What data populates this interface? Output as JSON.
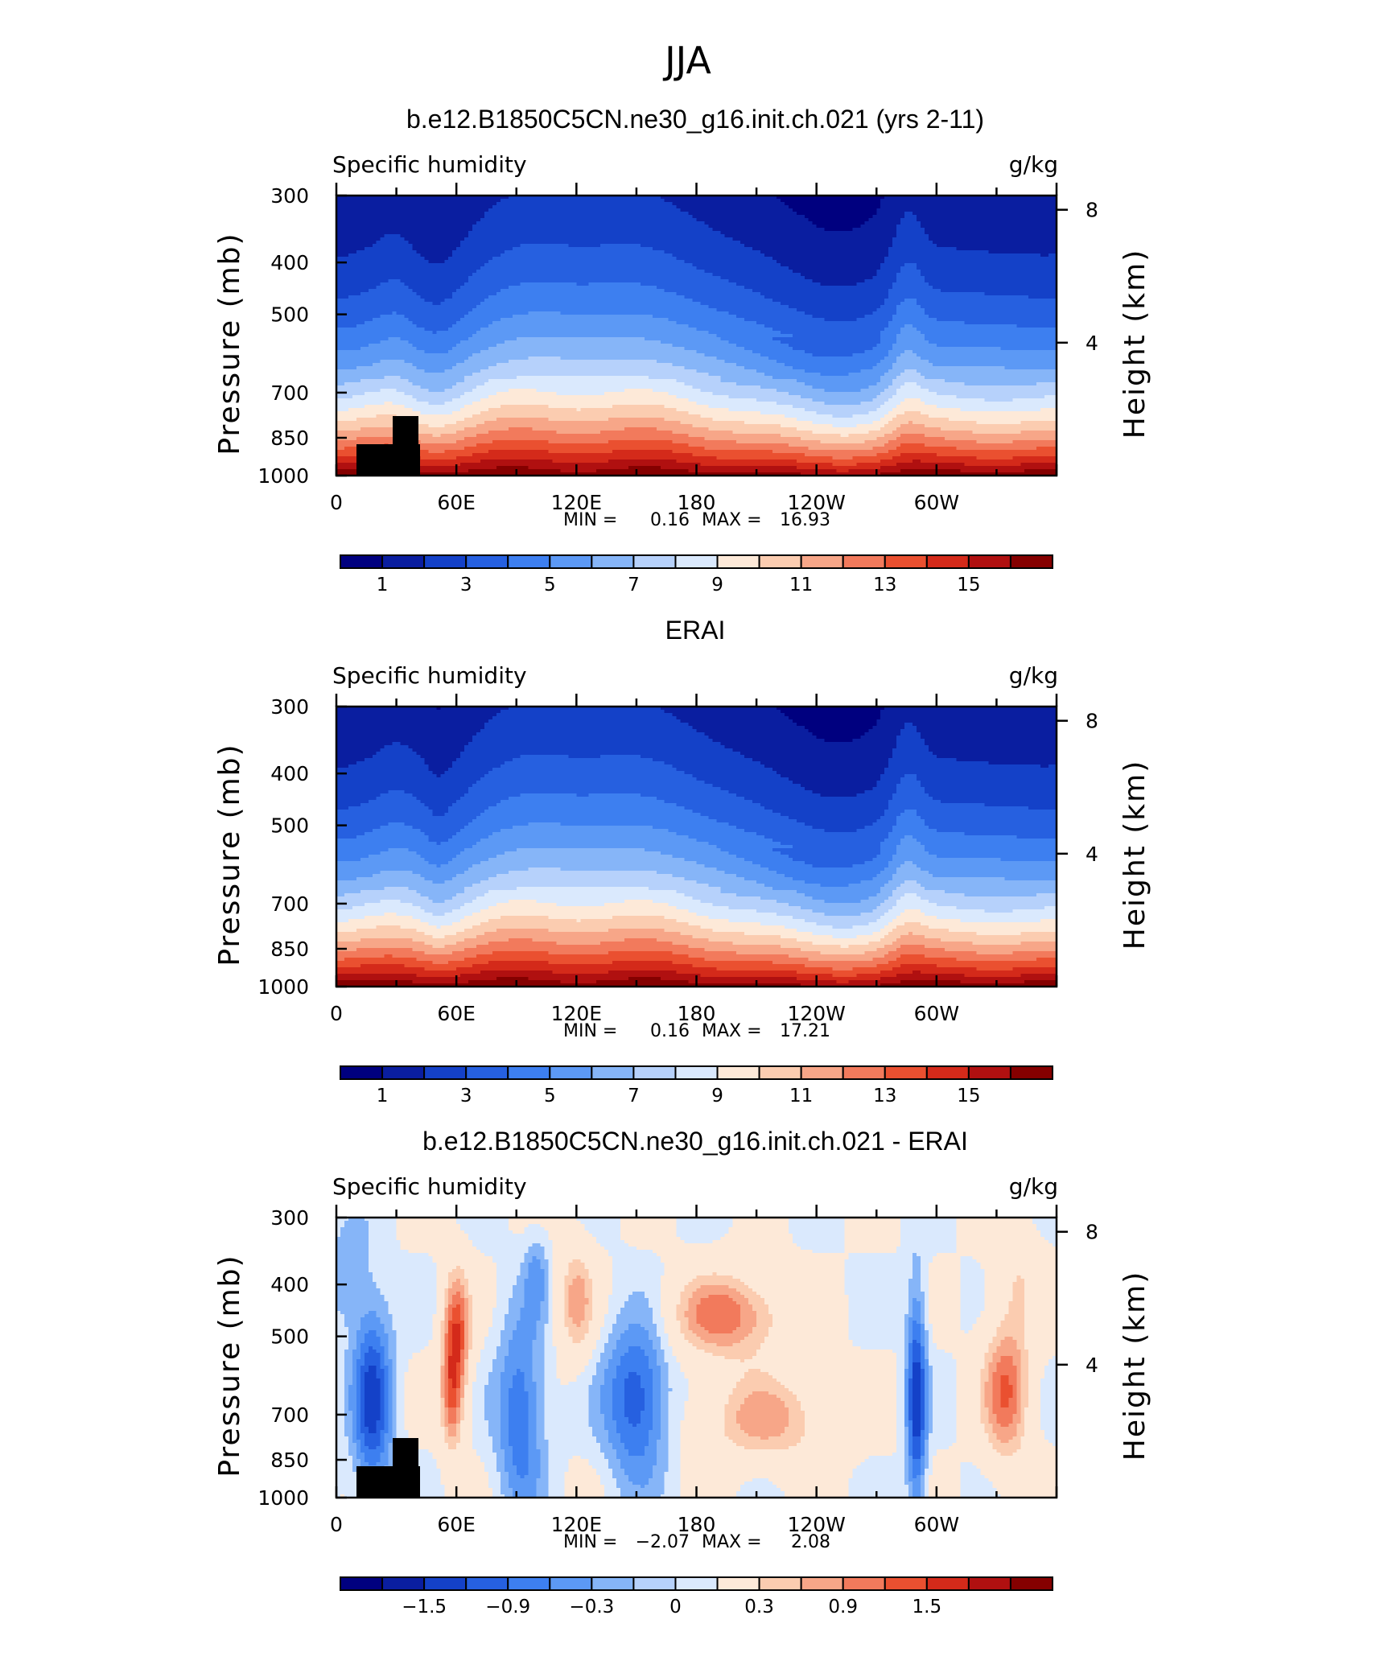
{
  "figure_title": "JJA",
  "chart_data": [
    {
      "type": "heatmap",
      "title": "b.e12.B1850C5CN.ne30_g16.init.ch.021 (yrs 2-11)",
      "left_label": "Specific humidity",
      "right_label": "g/kg",
      "ylabel": "Pressure (mb)",
      "ylabel_right": "Height (km)",
      "yticks": [
        "300",
        "400",
        "500",
        "700",
        "850",
        "1000"
      ],
      "yticks_right": [
        "8",
        "4"
      ],
      "xticks": [
        "0",
        "60E",
        "120E",
        "180",
        "120W",
        "60W"
      ],
      "min_label": "MIN =",
      "min_value": "0.16",
      "max_label": "MAX =",
      "max_value": "16.93",
      "colorbar_labels": [
        "1",
        "3",
        "5",
        "7",
        "9",
        "11",
        "13",
        "15"
      ],
      "field": "full",
      "has_terrain": true
    },
    {
      "type": "heatmap",
      "title": "ERAI",
      "left_label": "Specific humidity",
      "right_label": "g/kg",
      "ylabel": "Pressure (mb)",
      "ylabel_right": "Height (km)",
      "yticks": [
        "300",
        "400",
        "500",
        "700",
        "850",
        "1000"
      ],
      "yticks_right": [
        "8",
        "4"
      ],
      "xticks": [
        "0",
        "60E",
        "120E",
        "180",
        "120W",
        "60W"
      ],
      "min_label": "MIN =",
      "min_value": "0.16",
      "max_label": "MAX =",
      "max_value": "17.21",
      "colorbar_labels": [
        "1",
        "3",
        "5",
        "7",
        "9",
        "11",
        "13",
        "15"
      ],
      "field": "full",
      "has_terrain": false
    },
    {
      "type": "heatmap",
      "title": "b.e12.B1850C5CN.ne30_g16.init.ch.021 - ERAI",
      "left_label": "Specific humidity",
      "right_label": "g/kg",
      "ylabel": "Pressure (mb)",
      "ylabel_right": "Height (km)",
      "yticks": [
        "300",
        "400",
        "500",
        "700",
        "850",
        "1000"
      ],
      "yticks_right": [
        "8",
        "4"
      ],
      "xticks": [
        "0",
        "60E",
        "120E",
        "180",
        "120W",
        "60W"
      ],
      "min_label": "MIN =",
      "min_value": "−2.07",
      "max_label": "MAX =",
      "max_value": "2.08",
      "colorbar_labels": [
        "−1.5",
        "−0.9",
        "−0.3",
        "0",
        "0.3",
        "0.9",
        "1.5"
      ],
      "field": "diff",
      "has_terrain": true
    }
  ],
  "colors": [
    "#00007f",
    "#0a1ea0",
    "#1441c8",
    "#2660e0",
    "#3d7ff0",
    "#5c99f5",
    "#86b5f8",
    "#b6d1fb",
    "#dae9fd",
    "#fde9d8",
    "#fbccb0",
    "#f7a688",
    "#f27a5c",
    "#ea5030",
    "#d42a1a",
    "#b01010",
    "#850000"
  ]
}
